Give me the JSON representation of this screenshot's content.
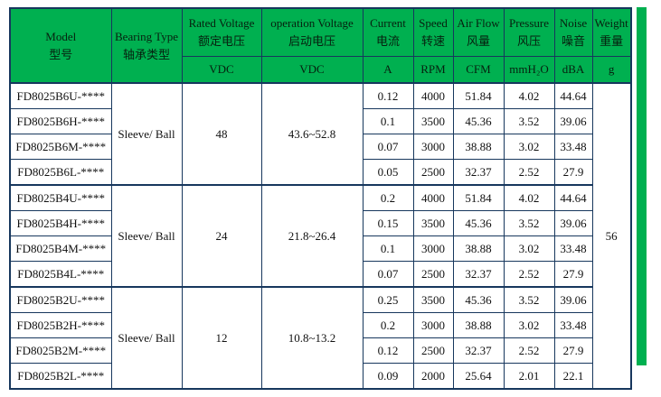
{
  "colors": {
    "header_green": "#00b050",
    "border_navy": "#17375d",
    "accent_bar_green": "#00b050"
  },
  "table": {
    "headers": {
      "model": {
        "en": "Model",
        "zh": "型号"
      },
      "bearing": {
        "en": "Bearing Type",
        "zh": "轴承类型"
      },
      "rated_voltage": {
        "en": "Rated Voltage",
        "zh": "额定电压",
        "unit": "VDC"
      },
      "operation_voltage": {
        "en": "operation Voltage",
        "zh": "启动电压",
        "unit": "VDC"
      },
      "current": {
        "en": "Current",
        "zh": "电流",
        "unit": "A"
      },
      "speed": {
        "en": "Speed",
        "zh": "转速",
        "unit": "RPM"
      },
      "air_flow": {
        "en": "Air Flow",
        "zh": "风量",
        "unit": "CFM"
      },
      "pressure": {
        "en": "Pressure",
        "zh": "风压",
        "unit": "mmH₂O"
      },
      "noise": {
        "en": "Noise",
        "zh": "噪音",
        "unit": "dBA"
      },
      "weight": {
        "en": "Weight",
        "zh": "重量",
        "unit": "g"
      }
    },
    "weight_value": "56",
    "groups": [
      {
        "bearing": "Sleeve/ Ball",
        "rated_voltage": "48",
        "operation_voltage": "43.6~52.8",
        "rows": [
          {
            "model": "FD8025B6U-****",
            "current": "0.12",
            "speed": "4000",
            "air_flow": "51.84",
            "pressure": "4.02",
            "noise": "44.64"
          },
          {
            "model": "FD8025B6H-****",
            "current": "0.1",
            "speed": "3500",
            "air_flow": "45.36",
            "pressure": "3.52",
            "noise": "39.06"
          },
          {
            "model": "FD8025B6M-****",
            "current": "0.07",
            "speed": "3000",
            "air_flow": "38.88",
            "pressure": "3.02",
            "noise": "33.48"
          },
          {
            "model": "FD8025B6L-****",
            "current": "0.05",
            "speed": "2500",
            "air_flow": "32.37",
            "pressure": "2.52",
            "noise": "27.9"
          }
        ]
      },
      {
        "bearing": "Sleeve/ Ball",
        "rated_voltage": "24",
        "operation_voltage": "21.8~26.4",
        "rows": [
          {
            "model": "FD8025B4U-****",
            "current": "0.2",
            "speed": "4000",
            "air_flow": "51.84",
            "pressure": "4.02",
            "noise": "44.64"
          },
          {
            "model": "FD8025B4H-****",
            "current": "0.15",
            "speed": "3500",
            "air_flow": "45.36",
            "pressure": "3.52",
            "noise": "39.06"
          },
          {
            "model": "FD8025B4M-****",
            "current": "0.1",
            "speed": "3000",
            "air_flow": "38.88",
            "pressure": "3.02",
            "noise": "33.48"
          },
          {
            "model": "FD8025B4L-****",
            "current": "0.07",
            "speed": "2500",
            "air_flow": "32.37",
            "pressure": "2.52",
            "noise": "27.9"
          }
        ]
      },
      {
        "bearing": "Sleeve/ Ball",
        "rated_voltage": "12",
        "operation_voltage": "10.8~13.2",
        "rows": [
          {
            "model": "FD8025B2U-****",
            "current": "0.25",
            "speed": "3500",
            "air_flow": "45.36",
            "pressure": "3.52",
            "noise": "39.06"
          },
          {
            "model": "FD8025B2H-****",
            "current": "0.2",
            "speed": "3000",
            "air_flow": "38.88",
            "pressure": "3.02",
            "noise": "33.48"
          },
          {
            "model": "FD8025B2M-****",
            "current": "0.12",
            "speed": "2500",
            "air_flow": "32.37",
            "pressure": "2.52",
            "noise": "27.9"
          },
          {
            "model": "FD8025B2L-****",
            "current": "0.09",
            "speed": "2000",
            "air_flow": "25.64",
            "pressure": "2.01",
            "noise": "22.1"
          }
        ]
      }
    ]
  }
}
